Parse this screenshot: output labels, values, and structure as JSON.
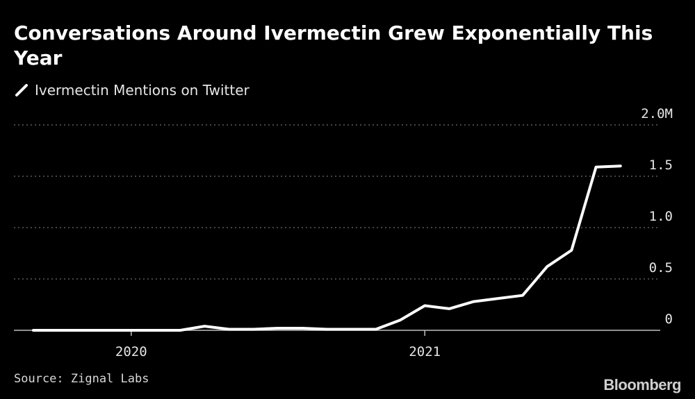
{
  "chart_data": {
    "type": "line",
    "title": "Conversations Around Ivermectin Grew Exponentially This Year",
    "legend": "Ivermectin Mentions on Twitter",
    "y_unit": "M",
    "ylim": [
      0,
      2.0
    ],
    "y_ticks": [
      {
        "value": 0,
        "label": "0"
      },
      {
        "value": 0.5,
        "label": "0.5"
      },
      {
        "value": 1.0,
        "label": "1.0"
      },
      {
        "value": 1.5,
        "label": "1.5"
      },
      {
        "value": 2.0,
        "label": "2.0M"
      }
    ],
    "x_ticks": [
      {
        "index": 4,
        "label": "2020"
      },
      {
        "index": 16,
        "label": "2021"
      }
    ],
    "series": [
      {
        "name": "Ivermectin Mentions on Twitter",
        "color": "#ffffff",
        "values": [
          0,
          0,
          0,
          0,
          0,
          0,
          0,
          0.04,
          0.01,
          0.01,
          0.02,
          0.02,
          0.01,
          0.01,
          0.01,
          0.1,
          0.24,
          0.21,
          0.28,
          0.31,
          0.34,
          0.62,
          0.78,
          1.59,
          1.6
        ]
      }
    ],
    "xlabel": "",
    "ylabel": "",
    "grid": true
  },
  "source": "Source: Zignal Labs",
  "brand": "Bloomberg",
  "colors": {
    "background": "#000000",
    "line": "#ffffff",
    "grid": "#8c8c8c"
  }
}
